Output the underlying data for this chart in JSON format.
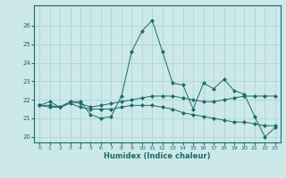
{
  "xlabel": "Humidex (Indice chaleur)",
  "bg_color": "#cce8e8",
  "line_color": "#1a6b6b",
  "grid_color": "#aad0d0",
  "xlim": [
    -0.5,
    23.5
  ],
  "ylim": [
    19.7,
    27.1
  ],
  "yticks": [
    20,
    21,
    22,
    23,
    24,
    25,
    26
  ],
  "xticks": [
    0,
    1,
    2,
    3,
    4,
    5,
    6,
    7,
    8,
    9,
    10,
    11,
    12,
    13,
    14,
    15,
    16,
    17,
    18,
    19,
    20,
    21,
    22,
    23
  ],
  "series": [
    [
      21.7,
      21.9,
      21.6,
      21.9,
      21.9,
      21.2,
      21.0,
      21.1,
      22.2,
      24.6,
      25.7,
      26.3,
      24.6,
      22.9,
      22.8,
      21.5,
      22.9,
      22.6,
      23.1,
      22.5,
      22.3,
      21.1,
      20.0,
      20.5
    ],
    [
      21.7,
      21.7,
      21.6,
      21.9,
      21.8,
      21.6,
      21.7,
      21.8,
      21.9,
      22.0,
      22.1,
      22.2,
      22.2,
      22.2,
      22.1,
      22.0,
      21.9,
      21.9,
      22.0,
      22.1,
      22.2,
      22.2,
      22.2,
      22.2
    ],
    [
      21.7,
      21.6,
      21.6,
      21.8,
      21.6,
      21.5,
      21.5,
      21.5,
      21.6,
      21.7,
      21.7,
      21.7,
      21.6,
      21.5,
      21.3,
      21.2,
      21.1,
      21.0,
      20.9,
      20.8,
      20.8,
      20.7,
      20.6,
      20.6
    ]
  ]
}
